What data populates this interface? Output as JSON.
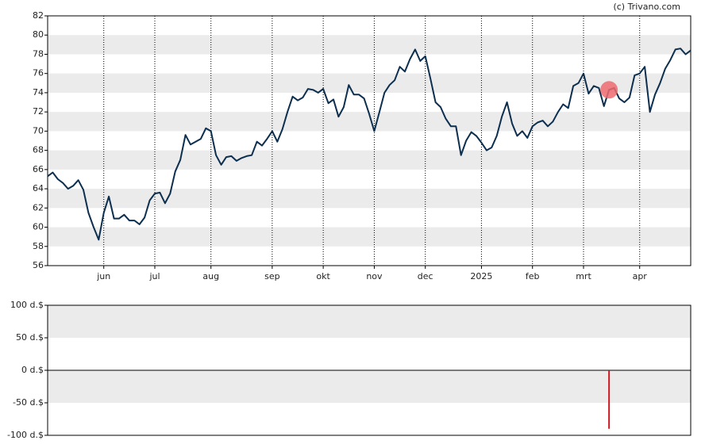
{
  "chart_data": [
    {
      "type": "line",
      "credit": "(c) Trivano.com",
      "categories": [
        null,
        null,
        null,
        null,
        null,
        null,
        null,
        null,
        null,
        null,
        null,
        "jun",
        null,
        null,
        null,
        null,
        null,
        null,
        null,
        null,
        null,
        "jul",
        null,
        null,
        null,
        null,
        null,
        null,
        null,
        null,
        null,
        null,
        "aug",
        null,
        null,
        null,
        null,
        null,
        null,
        null,
        null,
        null,
        null,
        null,
        "sep",
        null,
        null,
        null,
        null,
        null,
        null,
        null,
        null,
        null,
        "okt",
        null,
        null,
        null,
        null,
        null,
        null,
        null,
        null,
        null,
        "nov",
        null,
        null,
        null,
        null,
        null,
        null,
        null,
        null,
        null,
        "dec",
        null,
        null,
        null,
        null,
        null,
        null,
        null,
        null,
        null,
        null,
        "2025",
        null,
        null,
        null,
        null,
        null,
        null,
        null,
        null,
        null,
        "feb",
        null,
        null,
        null,
        null,
        null,
        null,
        null,
        null,
        null,
        "mrt",
        null,
        null,
        null,
        null,
        null,
        null,
        null,
        null,
        null,
        null,
        "apr",
        null,
        null,
        null,
        null,
        null,
        null,
        null,
        null,
        null,
        null
      ],
      "values": [
        65.3,
        65.7,
        65.0,
        64.6,
        64.0,
        64.3,
        64.9,
        63.9,
        61.5,
        60.0,
        58.7,
        61.5,
        63.2,
        60.9,
        60.9,
        61.3,
        60.7,
        60.7,
        60.3,
        61.0,
        62.8,
        63.5,
        63.6,
        62.5,
        63.5,
        65.8,
        67.0,
        69.6,
        68.6,
        68.9,
        69.2,
        70.3,
        70.0,
        67.5,
        66.5,
        67.3,
        67.4,
        66.9,
        67.2,
        67.4,
        67.5,
        68.9,
        68.5,
        69.2,
        70.0,
        68.9,
        70.2,
        72.0,
        73.6,
        73.2,
        73.5,
        74.4,
        74.3,
        74.0,
        74.4,
        72.9,
        73.3,
        71.5,
        72.5,
        74.8,
        73.8,
        73.8,
        73.4,
        71.8,
        70.0,
        72.0,
        74.0,
        74.8,
        75.3,
        76.7,
        76.2,
        77.5,
        78.5,
        77.3,
        77.8,
        75.5,
        73.0,
        72.5,
        71.3,
        70.5,
        70.5,
        67.5,
        69.0,
        69.9,
        69.5,
        68.8,
        68.0,
        68.3,
        69.5,
        71.5,
        73.0,
        70.8,
        69.5,
        70.0,
        69.3,
        70.5,
        70.9,
        71.1,
        70.5,
        71.0,
        72.0,
        72.8,
        72.4,
        74.7,
        75.0,
        76.0,
        73.9,
        74.7,
        74.5,
        72.6,
        74.3,
        74.5,
        73.4,
        73.0,
        73.5,
        75.8,
        76.0,
        76.7,
        72.0,
        73.8,
        75.0,
        76.5,
        77.4,
        78.5,
        78.6,
        78.0,
        78.4
      ],
      "color": "#0d2f4f",
      "highlight_index": 110,
      "highlight_color": "#ee6b6e",
      "ylim": [
        56,
        82
      ],
      "yticks": [
        56,
        58,
        60,
        62,
        64,
        66,
        68,
        70,
        72,
        74,
        76,
        78,
        80,
        82
      ],
      "stripes": "odd",
      "grid": true
    },
    {
      "type": "bar",
      "color": "#d0161e",
      "values": [
        null,
        null,
        null,
        null,
        null,
        null,
        null,
        null,
        null,
        null,
        null,
        null,
        null,
        null,
        null,
        null,
        null,
        null,
        null,
        null,
        null,
        null,
        null,
        null,
        null,
        null,
        null,
        null,
        null,
        null,
        null,
        null,
        null,
        null,
        null,
        null,
        null,
        null,
        null,
        null,
        null,
        null,
        null,
        null,
        null,
        null,
        null,
        null,
        null,
        null,
        null,
        null,
        null,
        null,
        null,
        null,
        null,
        null,
        null,
        null,
        null,
        null,
        null,
        null,
        null,
        null,
        null,
        null,
        null,
        null,
        null,
        null,
        null,
        null,
        null,
        null,
        null,
        null,
        null,
        null,
        null,
        null,
        null,
        null,
        null,
        null,
        null,
        null,
        null,
        null,
        null,
        null,
        null,
        null,
        null,
        null,
        null,
        null,
        null,
        null,
        null,
        null,
        null,
        null,
        null,
        null,
        null,
        null,
        null,
        null,
        -90,
        null,
        null,
        null,
        null,
        null,
        null,
        null,
        null,
        null,
        null,
        null,
        null,
        null,
        null,
        null,
        null
      ],
      "ylim": [
        -100,
        100
      ],
      "yticks": [
        {
          "value": -100,
          "label": "-100 d.$"
        },
        {
          "value": -50,
          "label": "-50 d.$"
        },
        {
          "value": 0,
          "label": "0 d.$"
        },
        {
          "value": 50,
          "label": "50 d.$"
        },
        {
          "value": 100,
          "label": "100 d.$"
        }
      ],
      "stripes": "even"
    }
  ]
}
